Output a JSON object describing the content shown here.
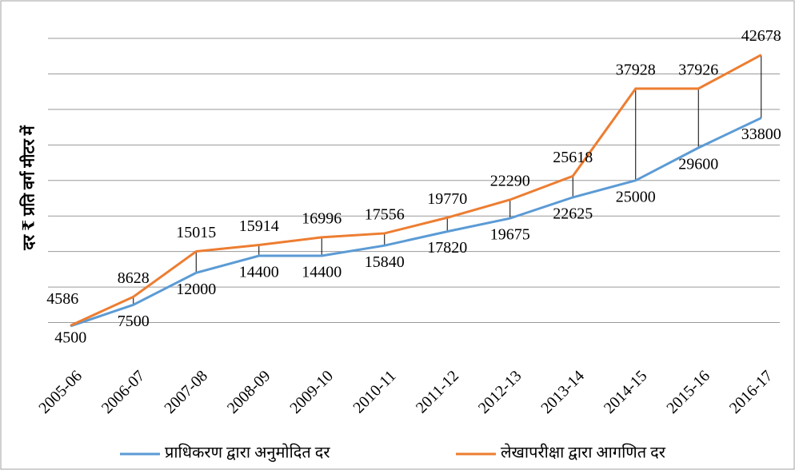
{
  "chart_data": {
    "type": "line",
    "y_label": "दर ₹ प्रति वर्ग मीटर में",
    "categories": [
      "2005-06",
      "2006-07",
      "2007-08",
      "2008-09",
      "2009-10",
      "2010-11",
      "2011-12",
      "2012-13",
      "2013-14",
      "2014-15",
      "2015-16",
      "2016-17"
    ],
    "series": [
      {
        "name": "प्राधिकरण द्वारा अनुमोदित दर",
        "color": "#5b9bd5",
        "values": [
          4500,
          7500,
          12000,
          14400,
          14400,
          15840,
          17820,
          19675,
          22625,
          25000,
          29600,
          33800
        ]
      },
      {
        "name": "लेखापरीक्षा द्वारा आगणित दर",
        "color": "#ed7d31",
        "values": [
          4586,
          8628,
          15015,
          15914,
          16996,
          17556,
          19770,
          22290,
          25618,
          37928,
          37926,
          42678
        ]
      }
    ],
    "ylim": [
      0,
      45000
    ],
    "yticks": [
      5000,
      10000,
      15000,
      20000,
      25000,
      30000,
      35000,
      40000,
      45000
    ],
    "grid": true,
    "drop_lines": true,
    "legend": "bottom"
  }
}
